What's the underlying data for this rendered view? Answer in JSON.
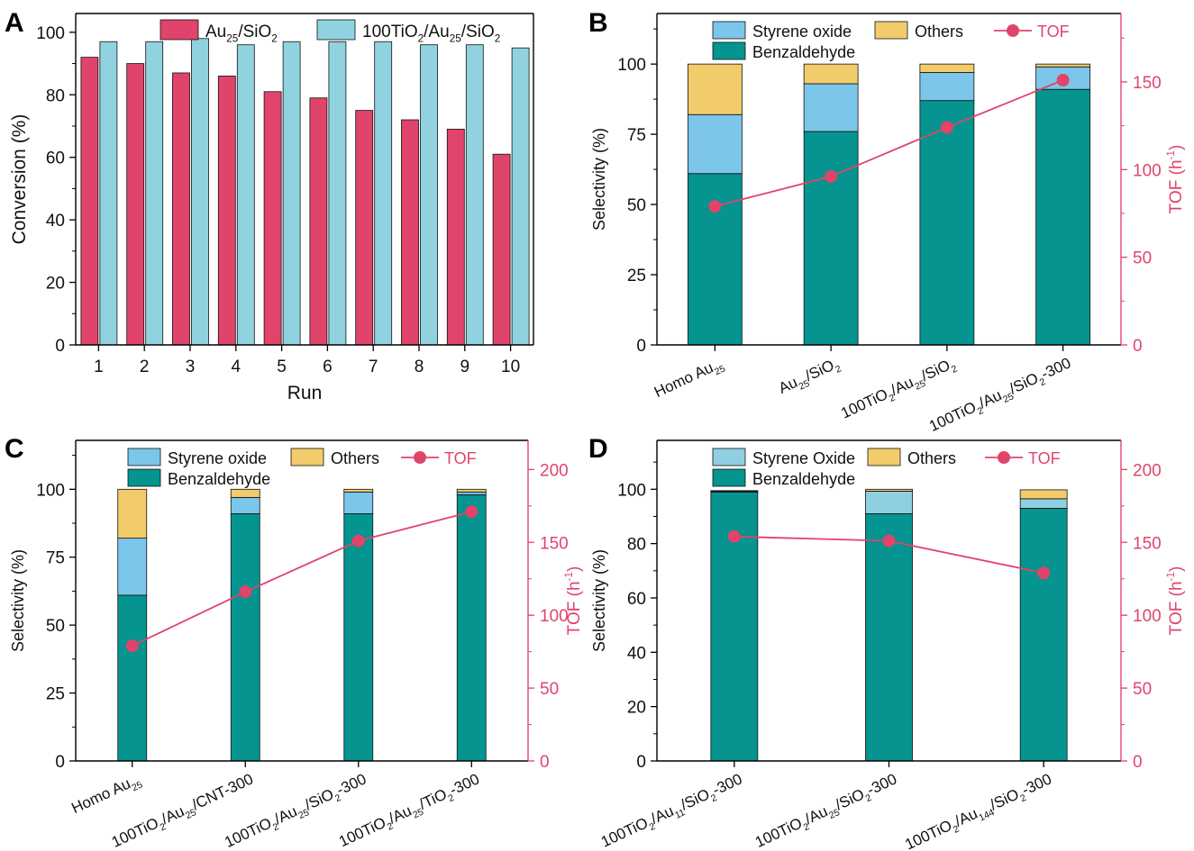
{
  "colors": {
    "au_sio2": "#e0446b",
    "tio2_au_sio2": "#90d2e0",
    "benzaldehyde": "#05948f",
    "styrene_oxide": "#7cc6ea",
    "styrene_oxide_d": "#8fcfe0",
    "others": "#f2cc6a",
    "tof": "#e0446b"
  },
  "chart_data": [
    {
      "id": "A",
      "panel_label": "A",
      "type": "bar",
      "xlabel": "Run",
      "ylabel": "Conversion (%)",
      "ylim": [
        0,
        106
      ],
      "yticks": [
        0,
        20,
        40,
        60,
        80,
        100
      ],
      "categories": [
        "1",
        "2",
        "3",
        "4",
        "5",
        "6",
        "7",
        "8",
        "9",
        "10"
      ],
      "legend_position": "top-center",
      "series": [
        {
          "name": "Au25/SiO2",
          "legend": [
            "Au",
            "25",
            "/SiO",
            "2"
          ],
          "color_key": "au_sio2",
          "values": [
            92,
            90,
            87,
            86,
            81,
            79,
            75,
            72,
            69,
            61
          ]
        },
        {
          "name": "100TiO2/Au25/SiO2",
          "legend": [
            "100TiO",
            "2",
            "/Au",
            "25",
            "/SiO",
            "2"
          ],
          "color_key": "tio2_au_sio2",
          "values": [
            97,
            97,
            98,
            96,
            97,
            97,
            97,
            96,
            96,
            95
          ]
        }
      ]
    },
    {
      "id": "B",
      "panel_label": "B",
      "type": "bar",
      "stacked": true,
      "ylabel": "Selectivity (%)",
      "ylim": [
        0,
        118
      ],
      "yticks": [
        0,
        25,
        50,
        75,
        100
      ],
      "y2label": [
        "TOF (h",
        "-1",
        ")"
      ],
      "y2lim": [
        0,
        189
      ],
      "y2ticks": [
        0,
        50,
        100,
        150
      ],
      "legend_position": "top",
      "legend": [
        {
          "label": "Styrene oxide",
          "kind": "box",
          "color_key": "styrene_oxide"
        },
        {
          "label": "Others",
          "kind": "box",
          "color_key": "others"
        },
        {
          "label": "TOF",
          "kind": "line",
          "color_key": "tof"
        },
        {
          "label": "Benzaldehyde",
          "kind": "box",
          "color_key": "benzaldehyde"
        }
      ],
      "categories": [
        [
          "Homo Au",
          "25"
        ],
        [
          "Au",
          "25",
          "/SiO",
          "2"
        ],
        [
          "100TiO",
          "2",
          "/Au",
          "25",
          "/SiO",
          "2"
        ],
        [
          "100TiO",
          "2",
          "/Au",
          "25",
          "/SiO",
          "2",
          "-300"
        ]
      ],
      "series": [
        {
          "name": "Benzaldehyde",
          "color_key": "benzaldehyde",
          "values": [
            61,
            76,
            87,
            91
          ]
        },
        {
          "name": "Styrene oxide",
          "color_key": "styrene_oxide",
          "values": [
            21,
            17,
            10,
            8
          ]
        },
        {
          "name": "Others",
          "color_key": "others",
          "values": [
            18,
            7,
            3,
            1
          ]
        }
      ],
      "line": {
        "name": "TOF",
        "color_key": "tof",
        "values": [
          79,
          96,
          124,
          151
        ]
      }
    },
    {
      "id": "C",
      "panel_label": "C",
      "type": "bar",
      "stacked": true,
      "ylabel": "Selectivity (%)",
      "ylim": [
        0,
        118
      ],
      "yticks": [
        0,
        25,
        50,
        75,
        100
      ],
      "y2label": [
        "TOF (h",
        "-1",
        ")"
      ],
      "y2lim": [
        0,
        220
      ],
      "y2ticks": [
        0,
        50,
        100,
        150,
        200
      ],
      "legend_position": "top",
      "legend": [
        {
          "label": "Styrene oxide",
          "kind": "box",
          "color_key": "styrene_oxide"
        },
        {
          "label": "Others",
          "kind": "box",
          "color_key": "others"
        },
        {
          "label": "TOF",
          "kind": "line",
          "color_key": "tof"
        },
        {
          "label": "Benzaldehyde",
          "kind": "box",
          "color_key": "benzaldehyde"
        }
      ],
      "categories": [
        [
          "Homo Au",
          "25"
        ],
        [
          "100TiO",
          "2",
          "/Au",
          "25",
          "/CNT-300"
        ],
        [
          "100TiO",
          "2",
          "/Au",
          "25",
          "/SiO",
          "2",
          "-300"
        ],
        [
          "100TiO",
          "2",
          "/Au",
          "25",
          "/TiO",
          "2",
          "-300"
        ]
      ],
      "series": [
        {
          "name": "Benzaldehyde",
          "color_key": "benzaldehyde",
          "values": [
            61,
            91,
            91,
            98
          ]
        },
        {
          "name": "Styrene oxide",
          "color_key": "styrene_oxide",
          "values": [
            21,
            6,
            8,
            1
          ]
        },
        {
          "name": "Others",
          "color_key": "others",
          "values": [
            18,
            3,
            1,
            1
          ]
        }
      ],
      "line": {
        "name": "TOF",
        "color_key": "tof",
        "values": [
          79,
          116,
          151,
          171
        ]
      }
    },
    {
      "id": "D",
      "panel_label": "D",
      "type": "bar",
      "stacked": true,
      "ylabel": "Selectivity (%)",
      "ylim": [
        0,
        118
      ],
      "yticks": [
        0,
        20,
        40,
        60,
        80,
        100
      ],
      "y2label": [
        "TOF (h",
        "-1",
        ")"
      ],
      "y2lim": [
        0,
        220
      ],
      "y2ticks": [
        0,
        50,
        100,
        150,
        200
      ],
      "legend_position": "top",
      "legend": [
        {
          "label": "Styrene Oxide",
          "kind": "box",
          "color_key": "styrene_oxide_d"
        },
        {
          "label": "Others",
          "kind": "box",
          "color_key": "others"
        },
        {
          "label": "TOF",
          "kind": "line",
          "color_key": "tof"
        },
        {
          "label": "Benzaldehyde",
          "kind": "box",
          "color_key": "benzaldehyde"
        }
      ],
      "categories": [
        [
          "100TiO",
          "2",
          "/Au",
          "11",
          "/SiO",
          "2",
          "-300"
        ],
        [
          "100TiO",
          "2",
          "/Au",
          "25",
          "/SiO",
          "2",
          "-300"
        ],
        [
          "100TiO",
          "2",
          "/Au",
          "144",
          "/SiO",
          "2",
          "-300"
        ]
      ],
      "series": [
        {
          "name": "Benzaldehyde",
          "color_key": "benzaldehyde",
          "values": [
            99,
            91,
            93
          ]
        },
        {
          "name": "Styrene Oxide",
          "color_key": "styrene_oxide_d",
          "values": [
            0.3,
            8.3,
            3.5
          ]
        },
        {
          "name": "Others",
          "color_key": "others",
          "values": [
            0.2,
            0.7,
            3.3
          ]
        }
      ],
      "line": {
        "name": "TOF",
        "color_key": "tof",
        "values": [
          154,
          151,
          129
        ]
      }
    }
  ]
}
